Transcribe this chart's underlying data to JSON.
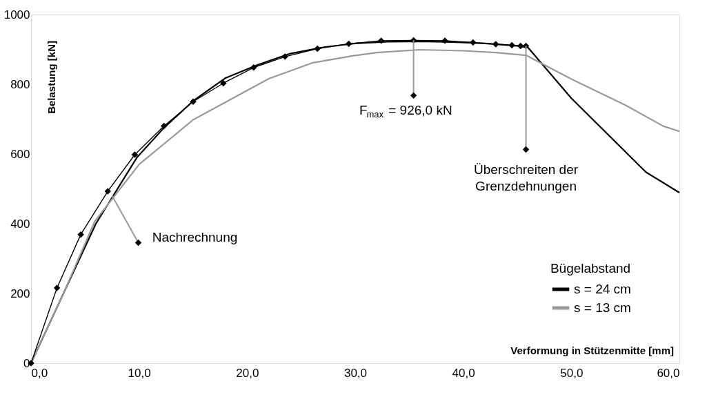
{
  "chart_data": {
    "type": "line",
    "xlabel": "Verformung in Stützenmitte [mm]",
    "ylabel": "Belastung [kN]",
    "legend_title": "Bügelabstand",
    "xlim": [
      0,
      60
    ],
    "ylim": [
      0,
      1000
    ],
    "xticks": [
      {
        "value": 0,
        "label": "0,0"
      },
      {
        "value": 10,
        "label": "10,0"
      },
      {
        "value": 20,
        "label": "20,0"
      },
      {
        "value": 30,
        "label": "30,0"
      },
      {
        "value": 40,
        "label": "40,0"
      },
      {
        "value": 50,
        "label": "50,0"
      },
      {
        "value": 60,
        "label": "60,0"
      }
    ],
    "yticks": [
      0,
      200,
      400,
      600,
      800,
      1000
    ],
    "grid": false,
    "legend": "bottom right",
    "line_style": "solid",
    "series": [
      {
        "name": "s = 24 cm",
        "color": "#000000",
        "marker": "none",
        "x": [
          0,
          6,
          9.8,
          12.3,
          15,
          18,
          21,
          24,
          27,
          30,
          33,
          36,
          39,
          42,
          45,
          46,
          50,
          56.9,
          60
        ],
        "values": [
          0,
          400,
          590,
          675,
          752,
          818,
          856,
          888,
          906,
          917,
          922,
          923,
          921,
          917,
          910,
          905,
          760,
          548,
          489
        ]
      },
      {
        "name": "s = 13 cm",
        "color": "#999999",
        "marker": "none",
        "x": [
          0,
          3,
          5.9,
          10,
          15,
          22,
          26,
          29.5,
          32,
          36,
          40,
          43,
          45.8,
          50,
          55,
          58.5,
          60
        ],
        "values": [
          0,
          200,
          407,
          570,
          698,
          816,
          861,
          880,
          891,
          899,
          896,
          891,
          883,
          815,
          740,
          680,
          665
        ]
      },
      {
        "color": "#000000",
        "marker": "diamond",
        "x": [
          0,
          2.4,
          4.6,
          7.1,
          9.6,
          12.3,
          15,
          17.8,
          20.6,
          23.5,
          26.5,
          29.4,
          32.4,
          35.4,
          38.3,
          40.9,
          43,
          44.5,
          45.3,
          45.8
        ],
        "values": [
          0,
          216,
          369,
          493,
          598,
          680,
          750,
          803,
          848,
          879,
          902,
          916,
          925,
          926,
          925,
          920,
          915,
          912,
          910,
          910
        ]
      }
    ],
    "annotations": [
      {
        "text": "F$_{max}$ = 926,0 kN",
        "x": 35.4,
        "y": 926
      },
      {
        "text": "Überschreiten der\nGrenzdehnungen",
        "x": 45.8,
        "y": 910
      },
      {
        "text": "Nachrechnung",
        "x": 7.5,
        "y": 480
      }
    ]
  }
}
